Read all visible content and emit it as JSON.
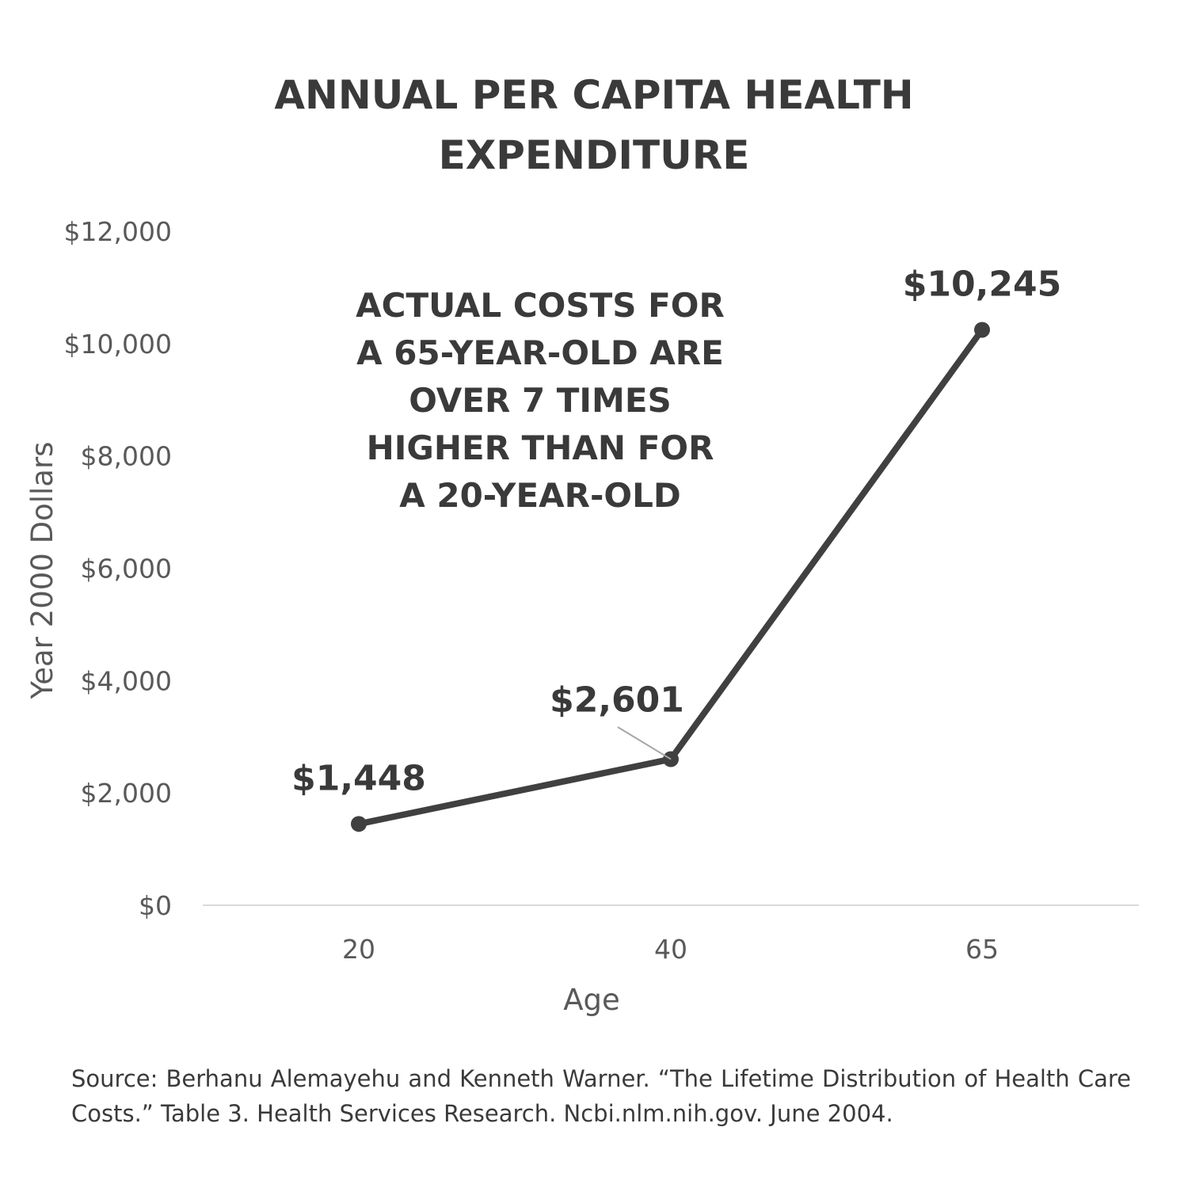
{
  "chart_data": {
    "type": "line",
    "title": [
      "ANNUAL PER CAPITA HEALTH",
      "EXPENDITURE"
    ],
    "categories": [
      "20",
      "40",
      "65"
    ],
    "values": [
      1448,
      2601,
      10245
    ],
    "data_labels": [
      "$1,448",
      "$2,601",
      "$10,245"
    ],
    "xlabel": "Age",
    "ylabel": "Year 2000 Dollars",
    "ylim": [
      0,
      12000
    ],
    "yticks": [
      0,
      2000,
      4000,
      6000,
      8000,
      10000,
      12000
    ],
    "ytick_labels": [
      "$0",
      "$2,000",
      "$4,000",
      "$6,000",
      "$8,000",
      "$10,000",
      "$12,000"
    ],
    "grid": false,
    "annotation": [
      "ACTUAL COSTS FOR",
      "A 65-YEAR-OLD ARE",
      "OVER 7 TIMES",
      "HIGHER THAN FOR",
      "A 20-YEAR-OLD"
    ],
    "colors": {
      "line": "#404040",
      "axis": "#d9d9d9",
      "text": "#3a3a3a"
    }
  },
  "source": "Source: Berhanu Alemayehu and Kenneth Warner. “The Lifetime Distribution of Health Care Costs.” Table 3. Health Services Research. Ncbi.nlm.nih.gov. June 2004."
}
